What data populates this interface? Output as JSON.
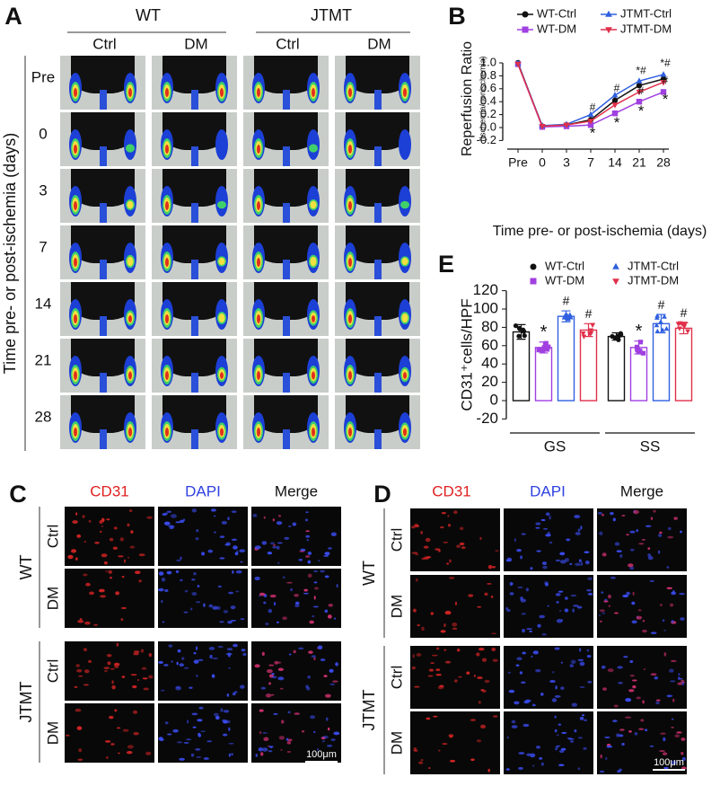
{
  "panel_a": {
    "label": "A",
    "groups": [
      "WT",
      "JTMT"
    ],
    "columns": [
      "Ctrl",
      "DM",
      "Ctrl",
      "DM"
    ],
    "rows": [
      "Pre",
      "0",
      "3",
      "7",
      "14",
      "21",
      "28"
    ],
    "axis_label": "Time pre- or post-ischemia (days)"
  },
  "chart_data": [
    {
      "type": "line",
      "label": "B",
      "title": "Reperfusion Ratio",
      "subtitle": "(Ischemia/nonischemia)",
      "x_label": "Time pre- or post-ischemia (days)",
      "categories": [
        "Pre",
        "0",
        "3",
        "7",
        "14",
        "21",
        "28"
      ],
      "ylim": [
        -0.2,
        1.0
      ],
      "yticks": [
        {
          "value": -0.2,
          "label": "-0.2"
        },
        {
          "value": 0,
          "label": "0.0"
        },
        0.2,
        0.4,
        0.6,
        0.8,
        {
          "value": 1,
          "label": "1.0"
        }
      ],
      "series": [
        {
          "name": "WT-Ctrl",
          "color": "#111111",
          "marker": "circle",
          "values": [
            1.0,
            0.02,
            0.04,
            0.12,
            0.42,
            0.65,
            0.75
          ]
        },
        {
          "name": "WT-DM",
          "color": "#a040e0",
          "marker": "square",
          "values": [
            0.98,
            0.01,
            0.02,
            0.04,
            0.22,
            0.4,
            0.55
          ]
        },
        {
          "name": "JTMT-Ctrl",
          "color": "#3060e0",
          "marker": "triangle-up",
          "values": [
            0.99,
            0.03,
            0.05,
            0.2,
            0.5,
            0.72,
            0.82
          ]
        },
        {
          "name": "JTMT-DM",
          "color": "#e0304a",
          "marker": "triangle-down",
          "values": [
            0.98,
            0.02,
            0.04,
            0.1,
            0.35,
            0.55,
            0.7
          ]
        }
      ],
      "annotations": [
        {
          "category": 3,
          "y": 0.3,
          "text": "#"
        },
        {
          "category": 3,
          "y": -0.1,
          "text": "*"
        },
        {
          "category": 4,
          "y": 0.6,
          "text": "#"
        },
        {
          "category": 4,
          "y": 0.06,
          "text": "*"
        },
        {
          "category": 5,
          "y": 0.87,
          "text": "*#"
        },
        {
          "category": 5,
          "y": 0.56,
          "text": "#"
        },
        {
          "category": 5,
          "y": 0.24,
          "text": "*"
        },
        {
          "category": 6,
          "y": 0.99,
          "text": "*#"
        },
        {
          "category": 6,
          "y": 0.72,
          "text": "#"
        },
        {
          "category": 6,
          "y": 0.42,
          "text": "*"
        }
      ]
    },
    {
      "type": "bar",
      "label": "E",
      "y_label": "CD31⁺cells/HPF",
      "categories": [
        "GS",
        "SS"
      ],
      "ylim": [
        -20,
        120
      ],
      "yticks": [
        -20,
        0,
        20,
        40,
        60,
        80,
        100,
        120
      ],
      "series": [
        {
          "name": "WT-Ctrl",
          "color": "#111111",
          "marker": "circle",
          "values": [
            75,
            70
          ],
          "errors": [
            8,
            4
          ]
        },
        {
          "name": "WT-DM",
          "color": "#a040e0",
          "marker": "square",
          "values": [
            58,
            58
          ],
          "errors": [
            6,
            7
          ]
        },
        {
          "name": "JTMT-Ctrl",
          "color": "#3060e0",
          "marker": "triangle-up",
          "values": [
            92,
            84
          ],
          "errors": [
            6,
            10
          ]
        },
        {
          "name": "JTMT-DM",
          "color": "#e0304a",
          "marker": "triangle-down",
          "values": [
            77,
            79
          ],
          "errors": [
            7,
            6
          ]
        }
      ],
      "annotations": [
        {
          "series": 1,
          "category": 0,
          "text": "*"
        },
        {
          "series": 2,
          "category": 0,
          "text": "#"
        },
        {
          "series": 3,
          "category": 0,
          "text": "#"
        },
        {
          "series": 1,
          "category": 1,
          "text": "*"
        },
        {
          "series": 2,
          "category": 1,
          "text": "#"
        },
        {
          "series": 3,
          "category": 1,
          "text": "#"
        }
      ]
    }
  ],
  "panel_c": {
    "label": "C",
    "columns": [
      "CD31",
      "DAPI",
      "Merge"
    ],
    "groups": [
      {
        "name": "WT",
        "rows": [
          "Ctrl",
          "DM"
        ]
      },
      {
        "name": "JTMT",
        "rows": [
          "Ctrl",
          "DM"
        ]
      }
    ],
    "scale_bar": "100μm"
  },
  "panel_d": {
    "label": "D",
    "columns": [
      "CD31",
      "DAPI",
      "Merge"
    ],
    "groups": [
      {
        "name": "WT",
        "rows": [
          "Ctrl",
          "DM"
        ]
      },
      {
        "name": "JTMT",
        "rows": [
          "Ctrl",
          "DM"
        ]
      }
    ],
    "scale_bar": "100μm"
  }
}
